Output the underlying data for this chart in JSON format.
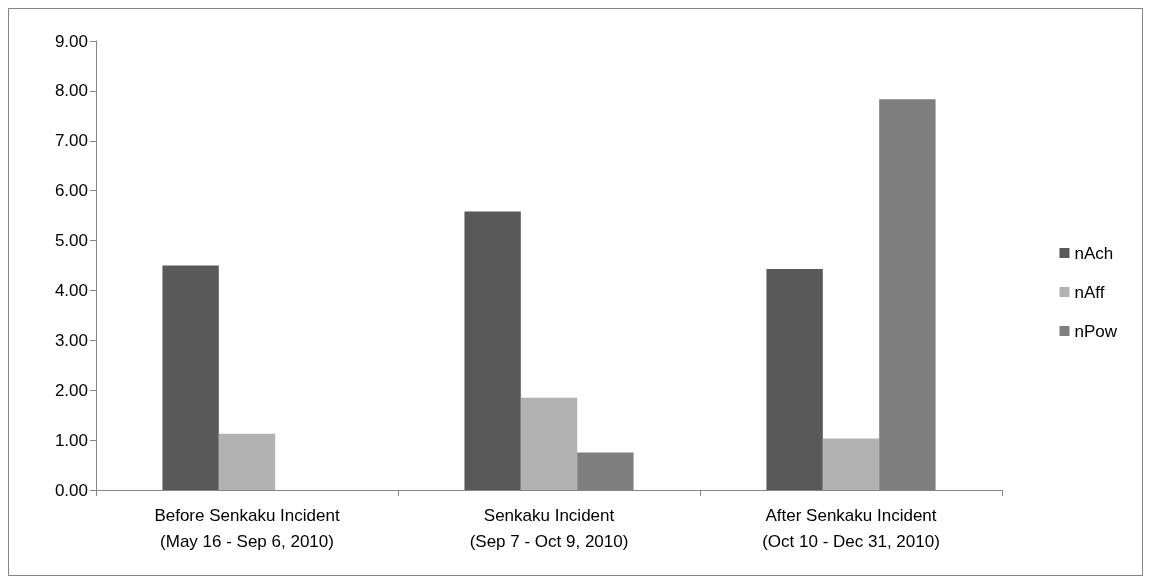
{
  "chart_data": {
    "type": "bar",
    "categories": [
      "Before Senkaku Incident\n(May 16 - Sep 6, 2010)",
      "Senkaku Incident\n(Sep 7 - Oct 9, 2010)",
      "After Senkaku Incident\n(Oct 10 - Dec 31, 2010)"
    ],
    "series": [
      {
        "name": "nAch",
        "color": "#595959",
        "values": [
          4.5,
          5.58,
          4.43
        ]
      },
      {
        "name": "nAff",
        "color": "#b2b2b2",
        "values": [
          1.13,
          1.85,
          1.03
        ]
      },
      {
        "name": "nPow",
        "color": "#7f7f7f",
        "values": [
          0,
          0.75,
          7.83
        ]
      }
    ],
    "ylim": [
      0,
      9
    ],
    "yticks": [
      {
        "value": 0,
        "label": "0.00"
      },
      {
        "value": 1,
        "label": "1.00"
      },
      {
        "value": 2,
        "label": "2.00"
      },
      {
        "value": 3,
        "label": "3.00"
      },
      {
        "value": 4,
        "label": "4.00"
      },
      {
        "value": 5,
        "label": "5.00"
      },
      {
        "value": 6,
        "label": "6.00"
      },
      {
        "value": 7,
        "label": "7.00"
      },
      {
        "value": 8,
        "label": "8.00"
      },
      {
        "value": 9,
        "label": "9.00"
      }
    ],
    "grid": false,
    "legend": "right"
  }
}
